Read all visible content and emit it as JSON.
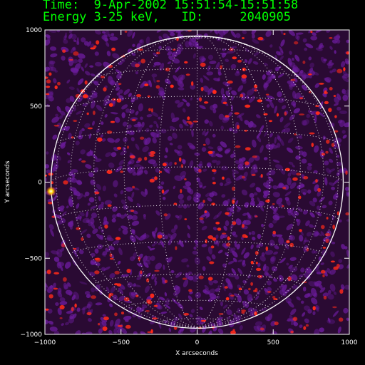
{
  "header": {
    "time_line": "Time:  9-Apr-2002 15:51:54-15:51:58",
    "energy_line": "Energy 3-25 keV,   ID:     2040905"
  },
  "chart_data": {
    "type": "heatmap",
    "xlabel": "X arcseconds",
    "ylabel": "Y arcseconds",
    "xlim": [
      -1000,
      1000
    ],
    "ylim": [
      -1000,
      1000
    ],
    "x_ticks": [
      -1000,
      -500,
      0,
      500,
      1000
    ],
    "y_ticks": [
      -1000,
      -500,
      0,
      500,
      1000
    ],
    "x_tick_labels": [
      "−1000",
      "−500",
      "0",
      "500",
      "1000"
    ],
    "y_tick_labels": [
      "−1000",
      "−500",
      "0",
      "500",
      "1000"
    ],
    "solar_limb_radius_arcsec": 960,
    "grid": "heliographic grid, dotted",
    "colors": {
      "background": "#2a0a33",
      "noise": "#6a1b9a",
      "hot": "#ff2a1a",
      "limb": "#ffffff",
      "header_text": "#00ff00"
    },
    "bright_source": {
      "x": -960,
      "y": -60
    }
  }
}
